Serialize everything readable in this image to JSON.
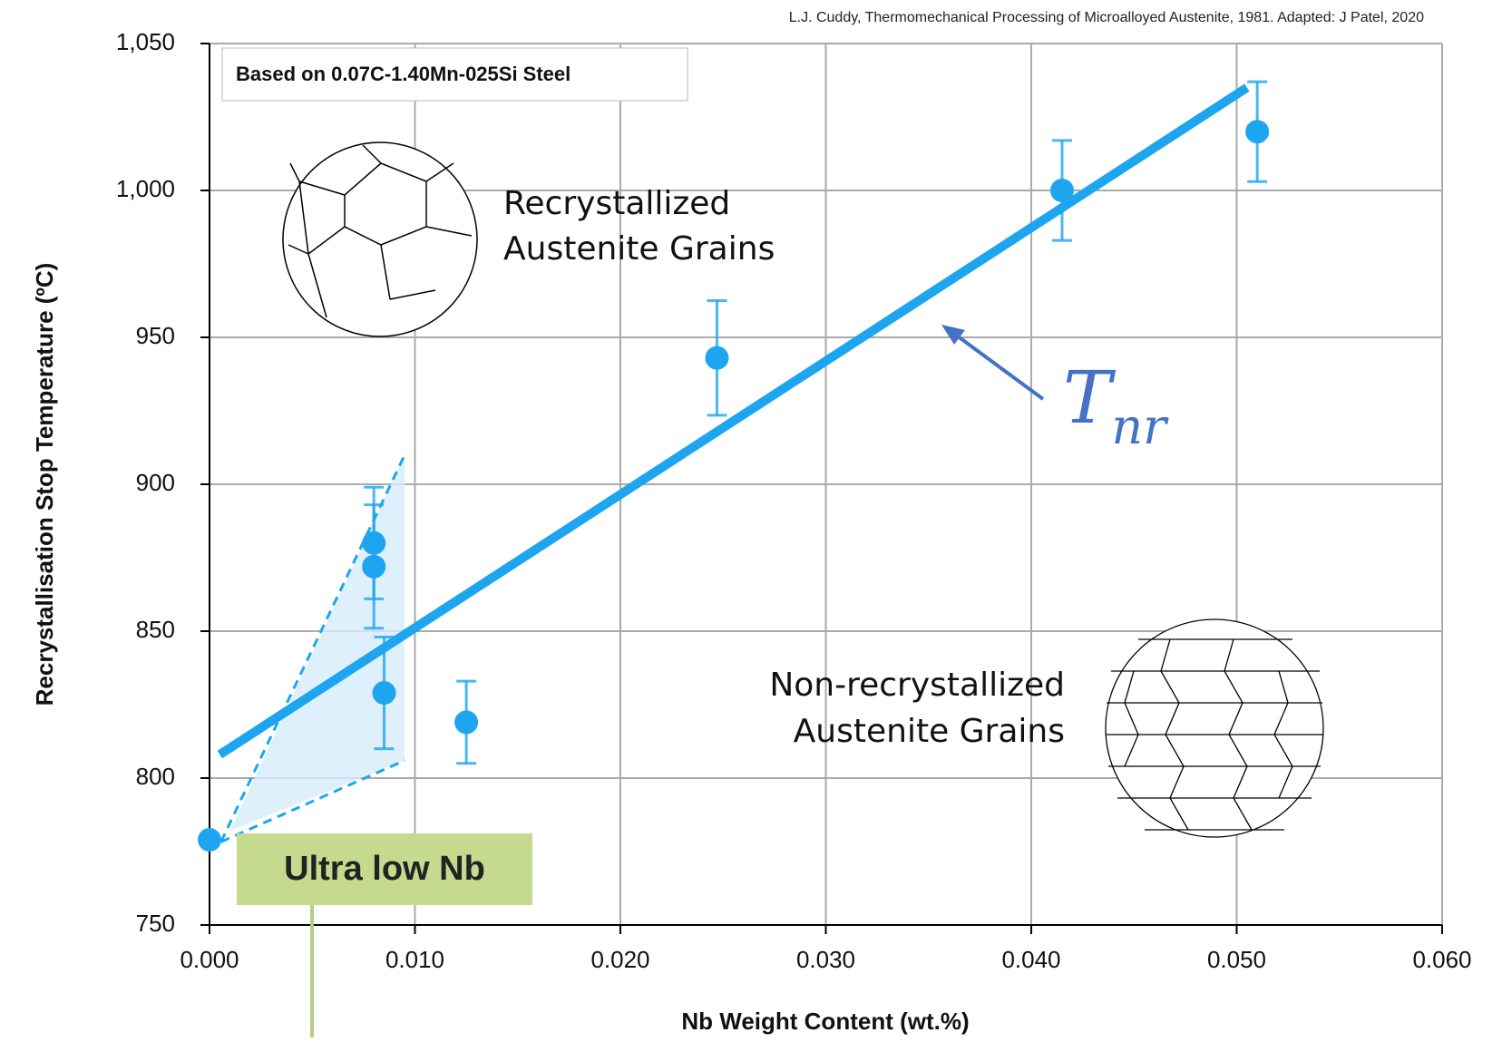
{
  "chart_data": {
    "type": "scatter",
    "source": "L.J. Cuddy, Thermomechanical Processing of Microalloyed Austenite, 1981.  Adapted: J Patel, 2020",
    "legend_box": "Based on 0.07C-1.40Mn-025Si Steel",
    "xlabel": "Nb Weight Content (wt.%)",
    "ylabel": "Recrystallisation Stop Temperature (ºC)",
    "xlim": [
      0,
      0.06
    ],
    "ylim": [
      750,
      1050
    ],
    "xticks": [
      {
        "value": 0,
        "label": "0.000"
      },
      {
        "value": 0.01,
        "label": "0.010"
      },
      {
        "value": 0.02,
        "label": "0.020"
      },
      {
        "value": 0.03,
        "label": "0.030"
      },
      {
        "value": 0.04,
        "label": "0.040"
      },
      {
        "value": 0.05,
        "label": "0.050"
      },
      {
        "value": 0.06,
        "label": "0.060"
      }
    ],
    "yticks": [
      750,
      800,
      850,
      900,
      950,
      {
        "value": 1000,
        "label": "1,000"
      },
      {
        "value": 1050,
        "label": "1,050"
      }
    ],
    "grid": true,
    "series": [
      {
        "color": "#1ea5f0",
        "x": [
          0.0,
          0.008,
          0.008,
          0.0085,
          0.0125,
          0.0247,
          0.0415,
          0.051
        ],
        "values": [
          779,
          880,
          872,
          829,
          819,
          943,
          1000,
          1020
        ],
        "errors": [
          null,
          19,
          21,
          19,
          14,
          19.5,
          17,
          17
        ]
      }
    ],
    "fit_line": {
      "color": "#1ea5f0",
      "x": [
        0.0005,
        0.0505
      ],
      "y": [
        808,
        1035
      ]
    },
    "region": {
      "x": [
        0.001,
        0.0095,
        0.0095
      ],
      "y": [
        782,
        910,
        806
      ]
    },
    "annotations": {
      "recrystallized": [
        "Recrystallized",
        "Austenite Grains"
      ],
      "non_recrystallized": [
        "Non-recrystallized",
        "Austenite Grains"
      ],
      "tnr": {
        "base": "T",
        "subscript": "nr"
      },
      "ultra_low": "Ultra low Nb"
    }
  }
}
